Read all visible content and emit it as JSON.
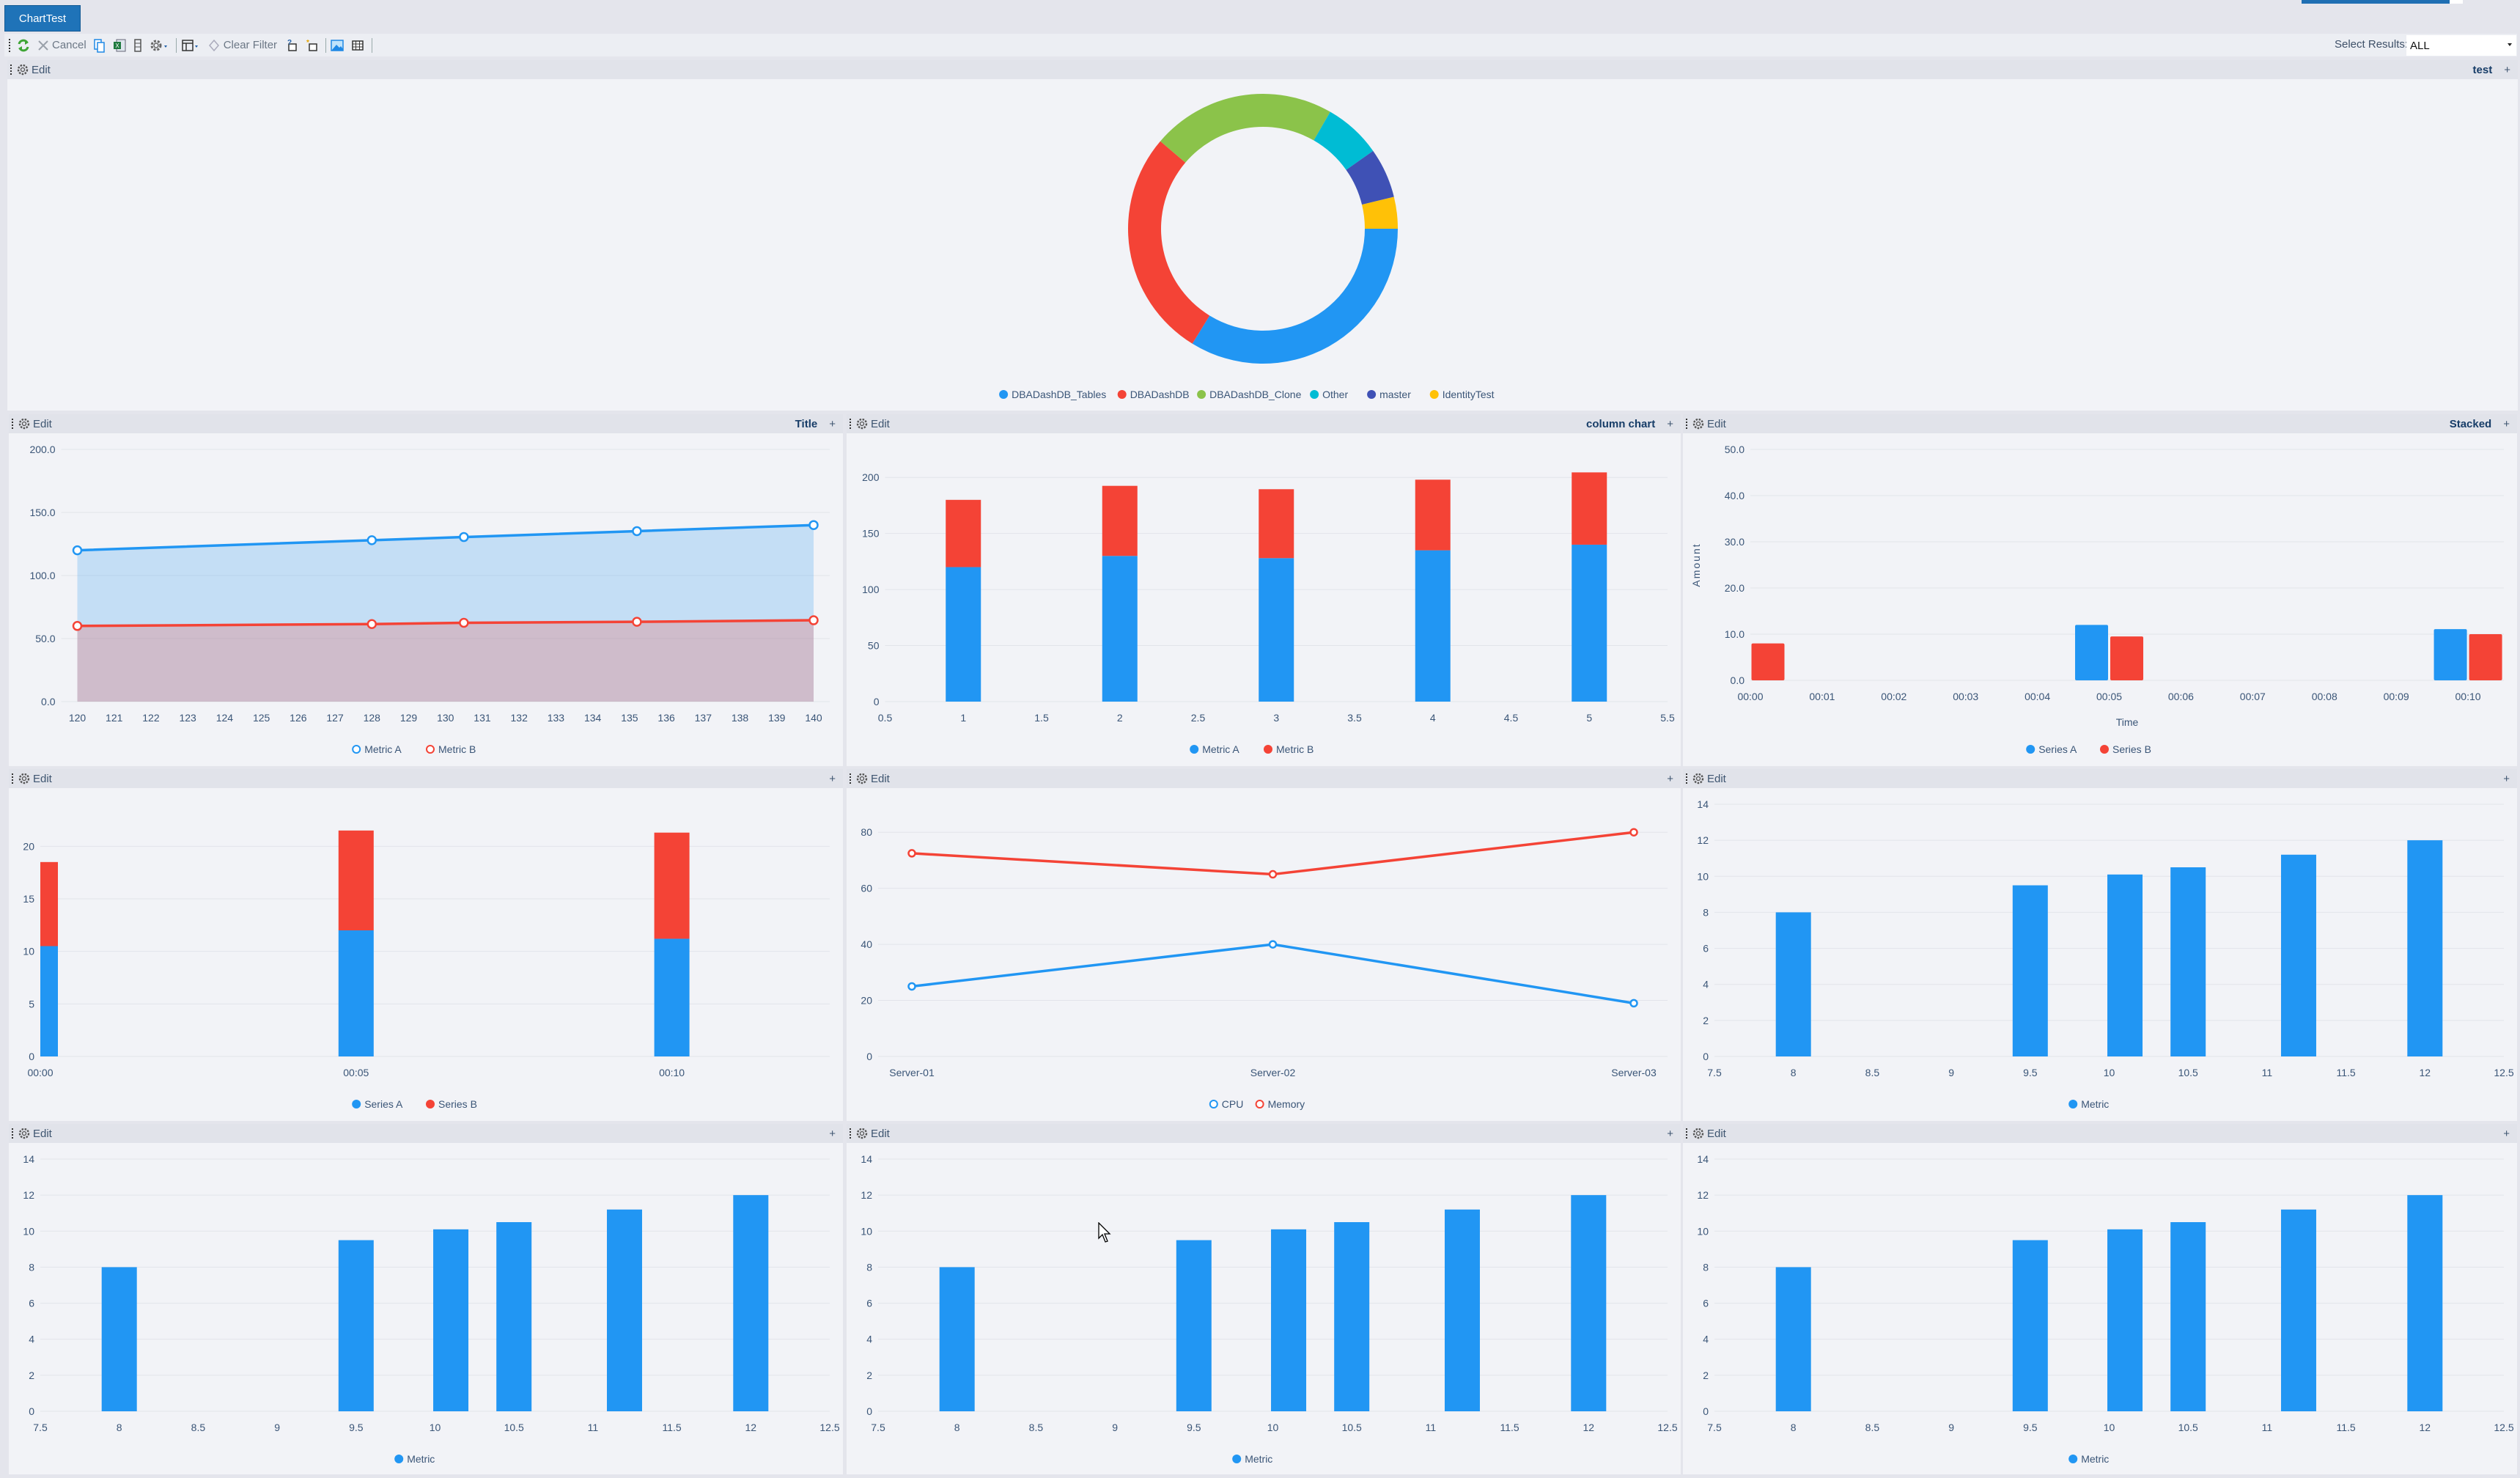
{
  "tab": {
    "label": "ChartTest"
  },
  "toolbar": {
    "cancel": "Cancel",
    "clear_filter": "Clear Filter",
    "select_results_label": "Select Results:",
    "select_results_value": "ALL"
  },
  "colors": {
    "blue": "#2196F3",
    "red": "#F44336",
    "green": "#8BC34A",
    "cyan": "#00BCD4",
    "indigo": "#3F51B5",
    "amber": "#FFC107",
    "tab": "#1f73b8"
  },
  "panels": [
    {
      "edit": "Edit",
      "title": "test",
      "add": "+"
    },
    {
      "edit": "Edit",
      "title": "Title",
      "add": "+"
    },
    {
      "edit": "Edit",
      "title": "column chart",
      "add": "+"
    },
    {
      "edit": "Edit",
      "title": "Stacked",
      "add": "+"
    },
    {
      "edit": "Edit",
      "title": "",
      "add": "+"
    },
    {
      "edit": "Edit",
      "title": "",
      "add": "+"
    },
    {
      "edit": "Edit",
      "title": "",
      "add": "+"
    },
    {
      "edit": "Edit",
      "title": "",
      "add": "+"
    },
    {
      "edit": "Edit",
      "title": "",
      "add": "+"
    },
    {
      "edit": "Edit",
      "title": "",
      "add": "+"
    }
  ],
  "chart_data": [
    {
      "type": "pie",
      "donut": true,
      "labels": [
        "DBADashDB_Tables",
        "DBADashDB",
        "DBADashDB_Clone",
        "Other",
        "master",
        "IdentityTest"
      ],
      "values": [
        33.8,
        27.5,
        22.1,
        6.9,
        6.0,
        3.8
      ],
      "colors": [
        "#2196F3",
        "#F44336",
        "#8BC34A",
        "#00BCD4",
        "#3F51B5",
        "#FFC107"
      ],
      "legend": "bottom"
    },
    {
      "type": "area",
      "x": [
        120,
        128,
        130.5,
        135.2,
        140
      ],
      "xlim": [
        120,
        140
      ],
      "xticks": [
        120,
        121,
        122,
        123,
        124,
        125,
        126,
        127,
        128,
        129,
        130,
        131,
        132,
        133,
        134,
        135,
        136,
        137,
        138,
        139,
        140
      ],
      "xtick_labels": [
        "120",
        "121",
        "122",
        "123",
        "124",
        "125",
        "126",
        "127",
        "128",
        "129",
        "130",
        "131",
        "132",
        "133",
        "134",
        "135",
        "136",
        "137",
        "138",
        "139",
        "140"
      ],
      "ylim": [
        0,
        200
      ],
      "yticks": [
        0,
        50,
        100,
        150,
        200
      ],
      "ytick_labels": [
        "0.0",
        "50.0",
        "100.0",
        "150.0",
        "200.0"
      ],
      "series": [
        {
          "name": "Metric A",
          "color": "#2196F3",
          "values": [
            120,
            128,
            130.5,
            135.2,
            140
          ]
        },
        {
          "name": "Metric B",
          "color": "#F44336",
          "values": [
            60,
            61.5,
            62.5,
            63.3,
            64.5
          ]
        }
      ],
      "grid": true,
      "legend": "bottom"
    },
    {
      "type": "bar",
      "stacked": true,
      "x": [
        1,
        2,
        3,
        4,
        5
      ],
      "xlim": [
        0.5,
        5.5
      ],
      "xticks": [
        0.5,
        1,
        1.5,
        2,
        2.5,
        3,
        3.5,
        4,
        4.5,
        5,
        5.5
      ],
      "xtick_labels": [
        "0.5",
        "1",
        "1.5",
        "2",
        "2.5",
        "3",
        "3.5",
        "4",
        "4.5",
        "5",
        "5.5"
      ],
      "ylim": [
        0,
        225
      ],
      "yticks": [
        0,
        50,
        100,
        150,
        200
      ],
      "ytick_labels": [
        "0",
        "50",
        "100",
        "150",
        "200"
      ],
      "series": [
        {
          "name": "Metric A",
          "color": "#2196F3",
          "values": [
            120,
            130,
            128,
            135,
            140
          ]
        },
        {
          "name": "Metric B",
          "color": "#F44336",
          "values": [
            60,
            62.5,
            61.5,
            63,
            64.5
          ]
        }
      ],
      "grid": true,
      "legend": "bottom"
    },
    {
      "type": "bar",
      "stacked": false,
      "xlabel": "Time",
      "ylabel": "Amount",
      "categories": [
        "00:00",
        "00:01",
        "00:02",
        "00:03",
        "00:04",
        "00:05",
        "00:06",
        "00:07",
        "00:08",
        "00:09",
        "00:10"
      ],
      "xlim": [
        0,
        10.5
      ],
      "ylim": [
        0,
        50
      ],
      "yticks": [
        0,
        10,
        20,
        30,
        40,
        50
      ],
      "ytick_labels": [
        "0.0",
        "10.0",
        "20.0",
        "30.0",
        "40.0",
        "50.0"
      ],
      "series": [
        {
          "name": "Series A",
          "color": "#2196F3",
          "values": [
            0,
            null,
            null,
            null,
            null,
            12,
            null,
            null,
            null,
            null,
            11.1
          ]
        },
        {
          "name": "Series B",
          "color": "#F44336",
          "values": [
            8,
            null,
            null,
            null,
            null,
            9.5,
            null,
            null,
            null,
            null,
            10
          ]
        }
      ],
      "grid": true,
      "legend": "bottom"
    },
    {
      "type": "bar",
      "stacked": true,
      "x": [
        0,
        5,
        10
      ],
      "xlim": [
        0,
        12.5
      ],
      "xticks": [
        0,
        5,
        10
      ],
      "xtick_labels": [
        "00:00",
        "00:05",
        "00:10"
      ],
      "ylim": [
        0,
        24
      ],
      "yticks": [
        0,
        5,
        10,
        15,
        20
      ],
      "ytick_labels": [
        "0",
        "5",
        "10",
        "15",
        "20"
      ],
      "series": [
        {
          "name": "Series A",
          "color": "#2196F3",
          "values": [
            10.5,
            12,
            11.2
          ]
        },
        {
          "name": "Series B",
          "color": "#F44336",
          "values": [
            8,
            9.5,
            10.1
          ]
        }
      ],
      "grid": true,
      "legend": "bottom"
    },
    {
      "type": "line",
      "categories": [
        "Server-01",
        "Server-02",
        "Server-03"
      ],
      "ylim": [
        0,
        90
      ],
      "yticks": [
        0,
        20,
        40,
        60,
        80
      ],
      "ytick_labels": [
        "0",
        "20",
        "40",
        "60",
        "80"
      ],
      "series": [
        {
          "name": "CPU",
          "color": "#2196F3",
          "values": [
            25,
            40,
            19
          ]
        },
        {
          "name": "Memory",
          "color": "#F44336",
          "values": [
            72.5,
            65,
            80
          ]
        }
      ],
      "grid": true,
      "legend": "bottom"
    },
    {
      "type": "bar",
      "x": [
        8,
        9.5,
        10.1,
        10.5,
        11.2,
        12
      ],
      "xlim": [
        7.5,
        12.5
      ],
      "xticks": [
        7.5,
        8,
        8.5,
        9,
        9.5,
        10,
        10.5,
        11,
        11.5,
        12,
        12.5
      ],
      "xtick_labels": [
        "7.5",
        "8",
        "8.5",
        "9",
        "9.5",
        "10",
        "10.5",
        "11",
        "11.5",
        "12",
        "12.5"
      ],
      "ylim": [
        0,
        14
      ],
      "yticks": [
        0,
        2,
        4,
        6,
        8,
        10,
        12,
        14
      ],
      "ytick_labels": [
        "0",
        "2",
        "4",
        "6",
        "8",
        "10",
        "12",
        "14"
      ],
      "series": [
        {
          "name": "Metric",
          "color": "#2196F3",
          "values": [
            8,
            9.5,
            10.1,
            10.5,
            11.2,
            12
          ]
        }
      ],
      "grid": true,
      "legend": "bottom"
    },
    {
      "type": "bar",
      "x": [
        8,
        9.5,
        10.1,
        10.5,
        11.2,
        12
      ],
      "xlim": [
        7.5,
        12.5
      ],
      "xticks": [
        7.5,
        8,
        8.5,
        9,
        9.5,
        10,
        10.5,
        11,
        11.5,
        12,
        12.5
      ],
      "xtick_labels": [
        "7.5",
        "8",
        "8.5",
        "9",
        "9.5",
        "10",
        "10.5",
        "11",
        "11.5",
        "12",
        "12.5"
      ],
      "ylim": [
        0,
        14
      ],
      "yticks": [
        0,
        2,
        4,
        6,
        8,
        10,
        12,
        14
      ],
      "ytick_labels": [
        "0",
        "2",
        "4",
        "6",
        "8",
        "10",
        "12",
        "14"
      ],
      "series": [
        {
          "name": "Metric",
          "color": "#2196F3",
          "values": [
            8,
            9.5,
            10.1,
            10.5,
            11.2,
            12
          ]
        }
      ],
      "grid": true,
      "legend": "bottom"
    },
    {
      "type": "bar",
      "x": [
        8,
        9.5,
        10.1,
        10.5,
        11.2,
        12
      ],
      "xlim": [
        7.5,
        12.5
      ],
      "xticks": [
        7.5,
        8,
        8.5,
        9,
        9.5,
        10,
        10.5,
        11,
        11.5,
        12,
        12.5
      ],
      "xtick_labels": [
        "7.5",
        "8",
        "8.5",
        "9",
        "9.5",
        "10",
        "10.5",
        "11",
        "11.5",
        "12",
        "12.5"
      ],
      "ylim": [
        0,
        14
      ],
      "yticks": [
        0,
        2,
        4,
        6,
        8,
        10,
        12,
        14
      ],
      "ytick_labels": [
        "0",
        "2",
        "4",
        "6",
        "8",
        "10",
        "12",
        "14"
      ],
      "series": [
        {
          "name": "Metric",
          "color": "#2196F3",
          "values": [
            8,
            9.5,
            10.1,
            10.5,
            11.2,
            12
          ]
        }
      ],
      "grid": true,
      "legend": "bottom"
    },
    {
      "type": "bar",
      "x": [
        8,
        9.5,
        10.1,
        10.5,
        11.2,
        12
      ],
      "xlim": [
        7.5,
        12.5
      ],
      "xticks": [
        7.5,
        8,
        8.5,
        9,
        9.5,
        10,
        10.5,
        11,
        11.5,
        12,
        12.5
      ],
      "xtick_labels": [
        "7.5",
        "8",
        "8.5",
        "9",
        "9.5",
        "10",
        "10.5",
        "11",
        "11.5",
        "12",
        "12.5"
      ],
      "ylim": [
        0,
        14
      ],
      "yticks": [
        0,
        2,
        4,
        6,
        8,
        10,
        12,
        14
      ],
      "ytick_labels": [
        "0",
        "2",
        "4",
        "6",
        "8",
        "10",
        "12",
        "14"
      ],
      "series": [
        {
          "name": "Metric",
          "color": "#2196F3",
          "values": [
            8,
            9.5,
            10.1,
            10.5,
            11.2,
            12
          ]
        }
      ],
      "grid": true,
      "legend": "bottom"
    }
  ]
}
